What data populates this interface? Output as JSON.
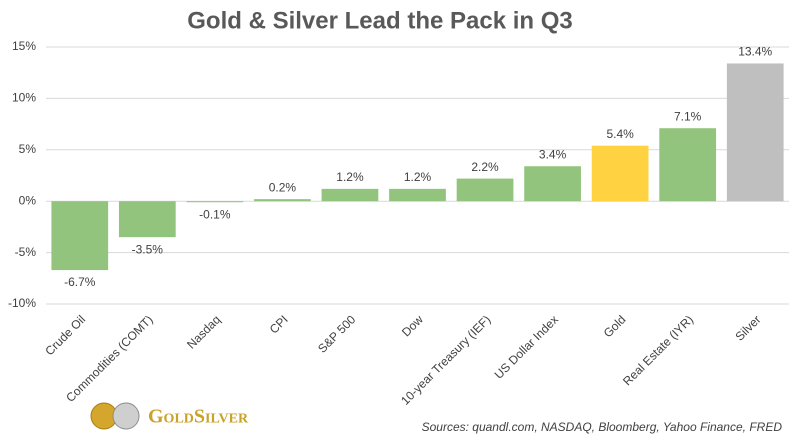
{
  "chart_data": {
    "type": "bar",
    "title": "Gold & Silver Lead the Pack in Q3",
    "categories": [
      "Crude Oil",
      "Commodities (COMT)",
      "Nasdaq",
      "CPI",
      "S&P 500",
      "Dow",
      "10-year Treasury (IEF)",
      "US Dollar Index",
      "Gold",
      "Real Estate (IYR)",
      "Silver"
    ],
    "values": [
      -6.7,
      -3.5,
      -0.1,
      0.2,
      1.2,
      1.2,
      2.2,
      3.4,
      5.4,
      7.1,
      13.4
    ],
    "value_labels": [
      "-6.7%",
      "-3.5%",
      "-0.1%",
      "0.2%",
      "1.2%",
      "1.2%",
      "2.2%",
      "3.4%",
      "5.4%",
      "7.1%",
      "13.4%"
    ],
    "colors": [
      "#93c47d",
      "#93c47d",
      "#93c47d",
      "#93c47d",
      "#93c47d",
      "#93c47d",
      "#93c47d",
      "#93c47d",
      "#ffd242",
      "#93c47d",
      "#bfbfbf"
    ],
    "ylim": [
      -10,
      15
    ],
    "yticks": [
      {
        "value": -10,
        "label": "-10%"
      },
      {
        "value": -5,
        "label": "-5%"
      },
      {
        "value": 0,
        "label": "0%"
      },
      {
        "value": 5,
        "label": "5%"
      },
      {
        "value": 10,
        "label": "10%"
      },
      {
        "value": 15,
        "label": "15%"
      }
    ],
    "grid": true,
    "source": "Sources: quandl.com, NASDAQ, Bloomberg, Yahoo Finance, FRED",
    "logo_text": "GoldSilver"
  }
}
